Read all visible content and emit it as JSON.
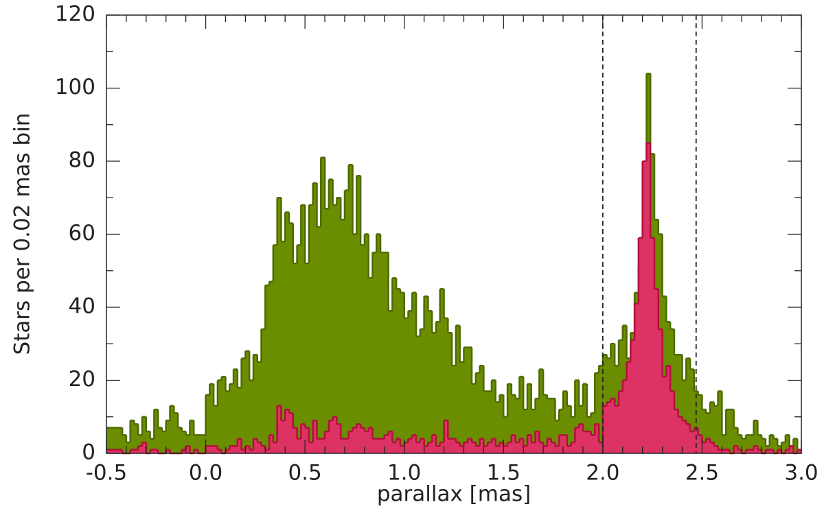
{
  "chart_data": {
    "type": "histogram",
    "xlabel": "parallax [mas]",
    "ylabel": "Stars per 0.02 mas bin",
    "bins": [
      -0.5,
      -0.48,
      -0.46,
      -0.44,
      -0.42,
      -0.4,
      -0.38,
      -0.36,
      -0.34,
      -0.32,
      -0.3,
      -0.28,
      -0.26,
      -0.24,
      -0.22,
      -0.2,
      -0.18,
      -0.16,
      -0.14,
      -0.12,
      -0.1,
      -0.08,
      -0.06,
      -0.04,
      -0.02,
      0,
      0.02,
      0.04,
      0.06,
      0.08,
      0.1,
      0.12,
      0.14,
      0.16,
      0.18,
      0.2,
      0.22,
      0.24,
      0.26,
      0.28,
      0.3,
      0.32,
      0.34,
      0.36,
      0.38,
      0.4,
      0.42,
      0.44,
      0.46,
      0.48,
      0.5,
      0.52,
      0.54,
      0.56,
      0.58,
      0.6,
      0.62,
      0.64,
      0.66,
      0.68,
      0.7,
      0.72,
      0.74,
      0.76,
      0.78,
      0.8,
      0.82,
      0.84,
      0.86,
      0.88,
      0.9,
      0.92,
      0.94,
      0.96,
      0.98,
      1,
      1.02,
      1.04,
      1.06,
      1.08,
      1.1,
      1.12,
      1.14,
      1.16,
      1.18,
      1.2,
      1.22,
      1.24,
      1.26,
      1.28,
      1.3,
      1.32,
      1.34,
      1.36,
      1.38,
      1.4,
      1.42,
      1.44,
      1.46,
      1.48,
      1.5,
      1.52,
      1.54,
      1.56,
      1.58,
      1.6,
      1.62,
      1.64,
      1.66,
      1.68,
      1.7,
      1.72,
      1.74,
      1.76,
      1.78,
      1.8,
      1.82,
      1.84,
      1.86,
      1.88,
      1.9,
      1.92,
      1.94,
      1.96,
      1.98,
      2,
      2.02,
      2.04,
      2.06,
      2.08,
      2.1,
      2.12,
      2.14,
      2.16,
      2.18,
      2.2,
      2.22,
      2.24,
      2.26,
      2.28,
      2.3,
      2.32,
      2.34,
      2.36,
      2.38,
      2.4,
      2.42,
      2.44,
      2.46,
      2.48,
      2.5,
      2.52,
      2.54,
      2.56,
      2.58,
      2.6,
      2.62,
      2.64,
      2.66,
      2.68,
      2.7,
      2.72,
      2.74,
      2.76,
      2.78,
      2.8,
      2.82,
      2.84,
      2.86,
      2.88,
      2.9,
      2.92,
      2.94,
      2.96,
      2.98,
      3
    ],
    "series": [
      {
        "color": "#6b8e00",
        "edge": "#4e6a00",
        "values": [
          7,
          7,
          7,
          7,
          5,
          3,
          9,
          8,
          5,
          10,
          6,
          4,
          12,
          7,
          6,
          9,
          13,
          11,
          7,
          6,
          5,
          9,
          5,
          5,
          5,
          16,
          19,
          13,
          20,
          21,
          17,
          19,
          23,
          18,
          26,
          28,
          20,
          27,
          25,
          34,
          46,
          47,
          57,
          70,
          58,
          66,
          63,
          52,
          57,
          68,
          52,
          68,
          74,
          62,
          81,
          67,
          75,
          68,
          70,
          64,
          72,
          79,
          60,
          76,
          57,
          60,
          48,
          55,
          60,
          55,
          55,
          39,
          48,
          45,
          44,
          37,
          39,
          44,
          32,
          34,
          43,
          39,
          33,
          36,
          45,
          37,
          33,
          24,
          35,
          25,
          29,
          29,
          19,
          22,
          24,
          17,
          17,
          20,
          14,
          16,
          10,
          19,
          16,
          15,
          21,
          12,
          19,
          12,
          15,
          23,
          16,
          15,
          15,
          9,
          12,
          17,
          13,
          10,
          20,
          13,
          19,
          10,
          11,
          22,
          24,
          27,
          26,
          30,
          24,
          31,
          35,
          26,
          33,
          44,
          51,
          63,
          104,
          82,
          64,
          60,
          43,
          36,
          34,
          27,
          27,
          20,
          26,
          23,
          17,
          16,
          12,
          11,
          14,
          13,
          17,
          5,
          12,
          12,
          7,
          5,
          4,
          5,
          5,
          9,
          5,
          4,
          2,
          5,
          4,
          2,
          3,
          5,
          2,
          4,
          1
        ]
      },
      {
        "color": "#dc3264",
        "edge": "#b0103c",
        "values": [
          1,
          1,
          1,
          1,
          0,
          0,
          1,
          1,
          2,
          3,
          0,
          1,
          1,
          0,
          0,
          1,
          0,
          0,
          0,
          1,
          2,
          0,
          1,
          0,
          0,
          2,
          2,
          2,
          1,
          0,
          1,
          2,
          2,
          4,
          1,
          2,
          1,
          4,
          3,
          2,
          1,
          5,
          3,
          13,
          9,
          12,
          11,
          7,
          4,
          8,
          7,
          3,
          9,
          4,
          4,
          6,
          9,
          10,
          8,
          4,
          4,
          6,
          7,
          8,
          7,
          6,
          7,
          4,
          4,
          4,
          5,
          6,
          3,
          4,
          2,
          3,
          4,
          5,
          3,
          4,
          2,
          3,
          5,
          2,
          3,
          9,
          4,
          4,
          3,
          2,
          3,
          4,
          3,
          2,
          4,
          2,
          3,
          4,
          2,
          3,
          2,
          3,
          5,
          3,
          4,
          2,
          5,
          3,
          6,
          3,
          2,
          4,
          3,
          2,
          5,
          5,
          2,
          3,
          7,
          8,
          6,
          6,
          5,
          8,
          3,
          13,
          14,
          15,
          13,
          17,
          20,
          25,
          31,
          41,
          59,
          80,
          85,
          59,
          45,
          34,
          21,
          24,
          17,
          12,
          10,
          9,
          8,
          6,
          7,
          5,
          3,
          4,
          3,
          2,
          1,
          1,
          1,
          0,
          2,
          1,
          0,
          1,
          1,
          2,
          1,
          0,
          1,
          1,
          0,
          1,
          0,
          1,
          2,
          0,
          1
        ]
      }
    ],
    "vlines": [
      2.0,
      2.47
    ],
    "xlim": [
      -0.5,
      3.0
    ],
    "ylim": [
      0,
      120
    ],
    "xticks": [
      -0.5,
      {
        "value": 0,
        "label": "0.0"
      },
      0.5,
      {
        "value": 1,
        "label": "1.0"
      },
      1.5,
      {
        "value": 2,
        "label": "2.0"
      },
      2.5,
      {
        "value": 3,
        "label": "3.0"
      }
    ],
    "yticks": [
      0,
      20,
      40,
      60,
      80,
      100,
      120
    ],
    "xminorticks": [
      -0.4,
      -0.3,
      -0.2,
      -0.1,
      0.1,
      0.2,
      0.3,
      0.4,
      0.6,
      0.7,
      0.8,
      0.9,
      1.1,
      1.2,
      1.3,
      1.4,
      1.6,
      1.7,
      1.8,
      1.9,
      2.1,
      2.2,
      2.3,
      2.4,
      2.6,
      2.7,
      2.8,
      2.9
    ],
    "yminorticks": [
      10,
      30,
      50,
      70,
      90,
      110
    ]
  }
}
